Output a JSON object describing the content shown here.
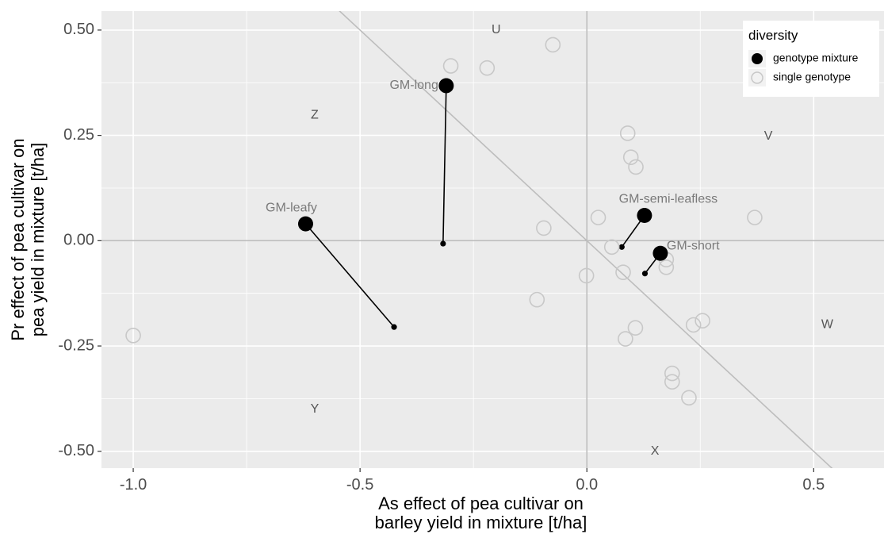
{
  "chart_data": {
    "type": "scatter",
    "xlabel": [
      "As effect of pea cultivar on",
      "barley yield in mixture [t/ha]"
    ],
    "ylabel": [
      "Pr effect of pea cultivar on",
      "pea yield in mixture [t/ha]"
    ],
    "xlim": [
      -1.07,
      0.655
    ],
    "ylim": [
      -0.54,
      0.545
    ],
    "x_ticks": [
      -1.0,
      -0.5,
      0.0,
      0.5
    ],
    "x_tick_labels": [
      "-1.0",
      "-0.5",
      "0.0",
      "0.5"
    ],
    "y_ticks": [
      -0.5,
      -0.25,
      0.0,
      0.25,
      0.5
    ],
    "y_tick_labels": [
      "-0.50",
      "-0.25",
      "0.00",
      "0.25",
      "0.50"
    ],
    "grid": true,
    "legend": {
      "title": "diversity",
      "position": "top-right",
      "entries": [
        "genotype mixture",
        "single genotype"
      ]
    },
    "reference_lines": {
      "vertical_x": 0.0,
      "horizontal_y": 0.0,
      "diagonal": [
        [
          -0.55,
          0.55
        ],
        [
          0.55,
          -0.55
        ]
      ]
    },
    "series": [
      {
        "name": "single genotype",
        "points": [
          [
            -1.0,
            -0.225
          ],
          [
            -0.3,
            0.415
          ],
          [
            -0.22,
            0.41
          ],
          [
            -0.075,
            0.465
          ],
          [
            -0.095,
            0.03
          ],
          [
            -0.11,
            -0.14
          ],
          [
            -0.001,
            -0.083
          ],
          [
            0.025,
            0.055
          ],
          [
            0.055,
            -0.015
          ],
          [
            0.08,
            -0.075
          ],
          [
            0.09,
            0.255
          ],
          [
            0.097,
            0.198
          ],
          [
            0.108,
            0.175
          ],
          [
            0.085,
            -0.233
          ],
          [
            0.107,
            -0.207
          ],
          [
            0.175,
            -0.045
          ],
          [
            0.175,
            -0.063
          ],
          [
            0.188,
            -0.315
          ],
          [
            0.188,
            -0.335
          ],
          [
            0.225,
            -0.373
          ],
          [
            0.235,
            -0.2
          ],
          [
            0.255,
            -0.19
          ],
          [
            0.37,
            0.055
          ]
        ]
      },
      {
        "name": "genotype mixture",
        "points": [
          {
            "label": "GM-long",
            "x": -0.31,
            "y": 0.368
          },
          {
            "label": "GM-leafy",
            "x": -0.62,
            "y": 0.04
          },
          {
            "label": "GM-semi-leafless",
            "x": 0.127,
            "y": 0.06
          },
          {
            "label": "GM-short",
            "x": 0.162,
            "y": -0.03
          }
        ]
      }
    ],
    "arrows": [
      {
        "from": [
          -0.317,
          -0.007
        ],
        "to": [
          -0.31,
          0.368
        ]
      },
      {
        "from": [
          -0.425,
          -0.205
        ],
        "to": [
          -0.62,
          0.04
        ]
      },
      {
        "from": [
          0.077,
          -0.015
        ],
        "to": [
          0.127,
          0.06
        ]
      },
      {
        "from": [
          0.128,
          -0.078
        ],
        "to": [
          0.162,
          -0.03
        ]
      }
    ],
    "annotations": [
      {
        "text": "U",
        "x": -0.2,
        "y": 0.5
      },
      {
        "text": "Z",
        "x": -0.6,
        "y": 0.298
      },
      {
        "text": "V",
        "x": 0.4,
        "y": 0.248
      },
      {
        "text": "W",
        "x": 0.53,
        "y": -0.2
      },
      {
        "text": "Y",
        "x": -0.6,
        "y": -0.4
      },
      {
        "text": "X",
        "x": 0.15,
        "y": -0.5
      }
    ],
    "colors": {
      "panel": "#ebebeb",
      "grid": "#ffffff",
      "ref_line": "#bdbdbd",
      "mixture": "#000000",
      "single": "#c8c8c8"
    }
  }
}
